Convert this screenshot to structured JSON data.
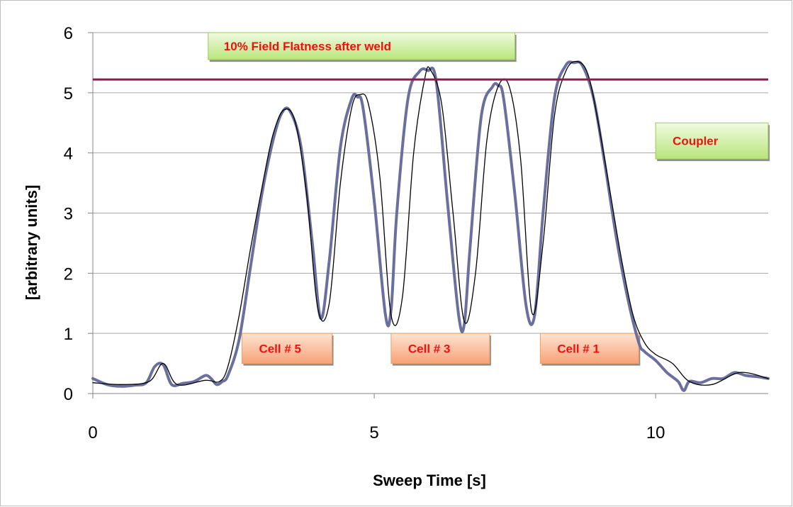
{
  "chart_data": {
    "type": "line",
    "title": "",
    "xlabel": "Sweep Time [s]",
    "ylabel": "[arbitrary units]",
    "xlim": [
      0,
      12
    ],
    "ylim": [
      0,
      6
    ],
    "xticks": [
      0,
      5,
      10
    ],
    "xtick_labels": [
      "0",
      "5",
      "10"
    ],
    "yticks": [
      0,
      1,
      2,
      3,
      4,
      5,
      6
    ],
    "ytick_labels": [
      "0",
      "1",
      "2",
      "3",
      "4",
      "5",
      "6"
    ],
    "grid": "horizontal",
    "legend": "none",
    "series": [
      {
        "color": "#6b6f9e",
        "style": "thick-noisy",
        "x": [
          0,
          0.25,
          0.5,
          0.75,
          0.95,
          1.1,
          1.25,
          1.4,
          1.6,
          1.8,
          2.0,
          2.1,
          2.2,
          2.3,
          2.4,
          2.6,
          2.8,
          3.0,
          3.2,
          3.35,
          3.5,
          3.7,
          3.9,
          4.05,
          4.2,
          4.4,
          4.6,
          4.7,
          4.8,
          5.0,
          5.2,
          5.3,
          5.4,
          5.6,
          5.8,
          5.95,
          6.1,
          6.3,
          6.5,
          6.6,
          6.7,
          6.9,
          7.1,
          7.2,
          7.3,
          7.5,
          7.7,
          7.85,
          8.0,
          8.2,
          8.4,
          8.55,
          8.7,
          8.9,
          9.1,
          9.3,
          9.5,
          9.7,
          9.8,
          10.0,
          10.2,
          10.4,
          10.5,
          10.6,
          10.8,
          11.0,
          11.2,
          11.4,
          11.6,
          11.8,
          12.0
        ],
        "y": [
          0.25,
          0.15,
          0.12,
          0.14,
          0.18,
          0.45,
          0.48,
          0.15,
          0.17,
          0.2,
          0.3,
          0.25,
          0.15,
          0.2,
          0.3,
          0.9,
          2.1,
          3.3,
          4.2,
          4.65,
          4.7,
          4.1,
          2.5,
          1.25,
          2.2,
          4.1,
          4.9,
          4.93,
          4.75,
          3.2,
          1.3,
          1.4,
          3.0,
          4.9,
          5.35,
          5.37,
          5.2,
          3.2,
          1.3,
          1.15,
          2.4,
          4.6,
          5.1,
          5.12,
          4.9,
          3.3,
          1.45,
          1.3,
          3.0,
          4.9,
          5.45,
          5.5,
          5.45,
          4.9,
          3.8,
          2.6,
          1.6,
          0.85,
          0.7,
          0.55,
          0.35,
          0.2,
          0.05,
          0.2,
          0.18,
          0.25,
          0.25,
          0.35,
          0.3,
          0.28,
          0.25
        ]
      },
      {
        "color": "#000000",
        "style": "thin-fit",
        "x": [
          0,
          0.5,
          1.0,
          1.25,
          1.5,
          2.0,
          2.25,
          2.4,
          2.6,
          2.8,
          3.0,
          3.2,
          3.4,
          3.6,
          3.8,
          4.0,
          4.2,
          4.4,
          4.6,
          4.75,
          4.9,
          5.1,
          5.3,
          5.5,
          5.7,
          5.9,
          6.0,
          6.2,
          6.4,
          6.6,
          6.8,
          7.0,
          7.2,
          7.4,
          7.6,
          7.8,
          8.0,
          8.2,
          8.4,
          8.6,
          8.8,
          9.0,
          9.2,
          9.4,
          9.6,
          9.8,
          10.0,
          10.3,
          10.6,
          11.0,
          11.5,
          12.0
        ],
        "y": [
          0.18,
          0.15,
          0.2,
          0.5,
          0.15,
          0.22,
          0.2,
          0.45,
          1.3,
          2.4,
          3.4,
          4.3,
          4.72,
          4.5,
          3.3,
          1.4,
          1.5,
          3.5,
          4.75,
          4.97,
          4.8,
          3.6,
          1.3,
          1.6,
          4.0,
          5.25,
          5.38,
          4.8,
          3.0,
          1.2,
          2.0,
          4.2,
          5.1,
          5.1,
          3.9,
          1.35,
          2.5,
          4.6,
          5.35,
          5.52,
          5.3,
          4.4,
          3.3,
          2.2,
          1.3,
          0.85,
          0.65,
          0.5,
          0.2,
          0.15,
          0.35,
          0.25
        ]
      }
    ],
    "reference_line": {
      "y": 5.22,
      "color": "#8b1c4a"
    },
    "annotations": [
      {
        "text": "10% Field Flatness after weld",
        "kind": "green",
        "x": [
          2.05,
          7.5
        ],
        "y": [
          5.55,
          6.0
        ]
      },
      {
        "text": "Coupler",
        "kind": "green",
        "x": [
          10.0,
          12.0
        ],
        "y": [
          3.9,
          4.5
        ]
      },
      {
        "text": "Cell # 5",
        "kind": "orange",
        "x": [
          2.65,
          4.25
        ],
        "y": [
          0.5,
          1.0
        ]
      },
      {
        "text": "Cell # 3",
        "kind": "orange",
        "x": [
          5.3,
          7.05
        ],
        "y": [
          0.5,
          1.0
        ]
      },
      {
        "text": "Cell # 1",
        "kind": "orange",
        "x": [
          7.95,
          9.7
        ],
        "y": [
          0.5,
          1.0
        ]
      }
    ]
  },
  "colors": {
    "grid": "#a6a6a6",
    "axis": "#868686",
    "annotation_text": "#ee1111",
    "green_fill_top": "#f0fbe2",
    "green_fill_bottom": "#b9e57a",
    "green_border": "#9bca5a",
    "orange_fill_top": "#fde4d2",
    "orange_fill_bottom": "#f7a278",
    "orange_border": "#f0a060",
    "box_shadow": "#8c8c8c"
  }
}
